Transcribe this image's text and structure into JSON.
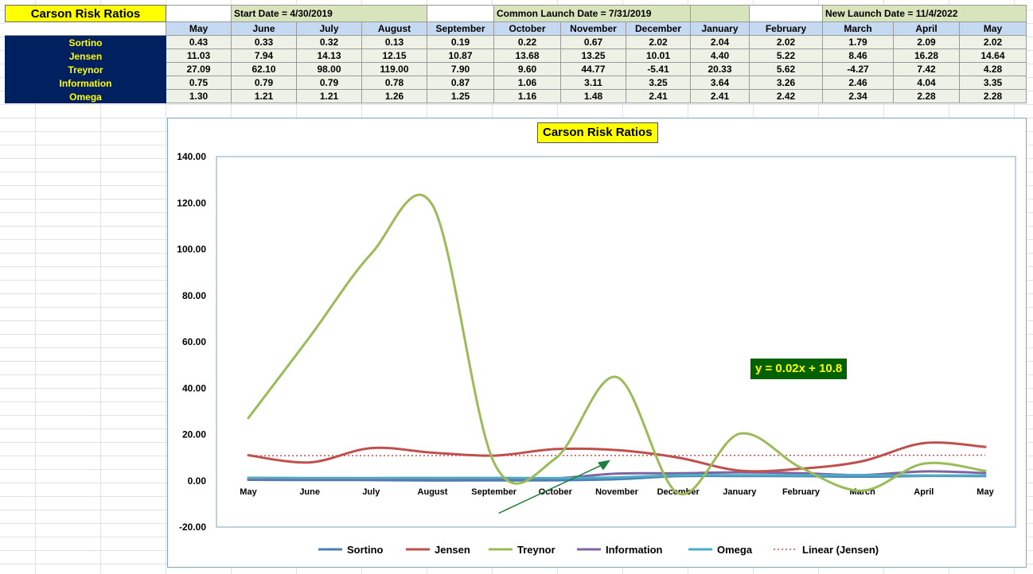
{
  "sheet": {
    "title": "Carson Risk Ratios",
    "start_date": "Start Date = 4/30/2019",
    "common_launch": "Common Launch Date = 7/31/2019",
    "new_launch": "New Launch Date = 11/4/2022",
    "months": [
      "May",
      "June",
      "July",
      "August",
      "September",
      "October",
      "November",
      "December",
      "January",
      "February",
      "March",
      "April",
      "May"
    ],
    "rows": [
      {
        "label": "Sortino",
        "values": [
          "0.43",
          "0.33",
          "0.32",
          "0.13",
          "0.19",
          "0.22",
          "0.67",
          "2.02",
          "2.04",
          "2.02",
          "1.79",
          "2.09",
          "2.02"
        ]
      },
      {
        "label": "Jensen",
        "values": [
          "11.03",
          "7.94",
          "14.13",
          "12.15",
          "10.87",
          "13.68",
          "13.25",
          "10.01",
          "4.40",
          "5.22",
          "8.46",
          "16.28",
          "14.64"
        ]
      },
      {
        "label": "Treynor",
        "values": [
          "27.09",
          "62.10",
          "98.00",
          "119.00",
          "7.90",
          "9.60",
          "44.77",
          "-5.41",
          "20.33",
          "5.62",
          "-4.27",
          "7.42",
          "4.28"
        ]
      },
      {
        "label": "Information",
        "values": [
          "0.75",
          "0.79",
          "0.79",
          "0.78",
          "0.87",
          "1.06",
          "3.11",
          "3.25",
          "3.64",
          "3.26",
          "2.46",
          "4.04",
          "3.35"
        ]
      },
      {
        "label": "Omega",
        "values": [
          "1.30",
          "1.21",
          "1.21",
          "1.26",
          "1.25",
          "1.16",
          "1.48",
          "2.41",
          "2.41",
          "2.42",
          "2.34",
          "2.28",
          "2.28"
        ]
      }
    ]
  },
  "chart_data": {
    "type": "line",
    "title": "Carson Risk Ratios",
    "categories": [
      "May",
      "June",
      "July",
      "August",
      "September",
      "October",
      "November",
      "December",
      "January",
      "February",
      "March",
      "April",
      "May"
    ],
    "ylim": [
      -20,
      140
    ],
    "yticks": [
      "-20.00",
      "0.00",
      "20.00",
      "40.00",
      "60.00",
      "80.00",
      "100.00",
      "120.00",
      "140.00"
    ],
    "ytick_values": [
      -20,
      0,
      20,
      40,
      60,
      80,
      100,
      120,
      140
    ],
    "grid": false,
    "legend": "bottom",
    "series": [
      {
        "name": "Sortino",
        "color": "#4a7eb5",
        "values": [
          0.43,
          0.33,
          0.32,
          0.13,
          0.19,
          0.22,
          0.67,
          2.02,
          2.04,
          2.02,
          1.79,
          2.09,
          2.02
        ]
      },
      {
        "name": "Jensen",
        "color": "#c0504d",
        "values": [
          11.03,
          7.94,
          14.13,
          12.15,
          10.87,
          13.68,
          13.25,
          10.01,
          4.4,
          5.22,
          8.46,
          16.28,
          14.64
        ]
      },
      {
        "name": "Treynor",
        "color": "#9bbb59",
        "values": [
          27.09,
          62.1,
          98.0,
          119.0,
          7.9,
          9.6,
          44.77,
          -5.41,
          20.33,
          5.62,
          -4.27,
          7.42,
          4.28
        ]
      },
      {
        "name": "Information",
        "color": "#8064a2",
        "values": [
          0.75,
          0.79,
          0.79,
          0.78,
          0.87,
          1.06,
          3.11,
          3.25,
          3.64,
          3.26,
          2.46,
          4.04,
          3.35
        ]
      },
      {
        "name": "Omega",
        "color": "#4bacc6",
        "values": [
          1.3,
          1.21,
          1.21,
          1.26,
          1.25,
          1.16,
          1.48,
          2.41,
          2.41,
          2.42,
          2.34,
          2.28,
          2.28
        ]
      }
    ],
    "trendline": {
      "name": "Linear (Jensen)",
      "color": "#c0504d",
      "slope": 0.02,
      "intercept": 10.8
    },
    "equation_label": "y = 0.02x + 10.8",
    "annotation": {
      "type": "arrow",
      "color": "#1e7f3c",
      "from": [
        "September",
        -14
      ],
      "to": [
        "November",
        9
      ]
    }
  }
}
